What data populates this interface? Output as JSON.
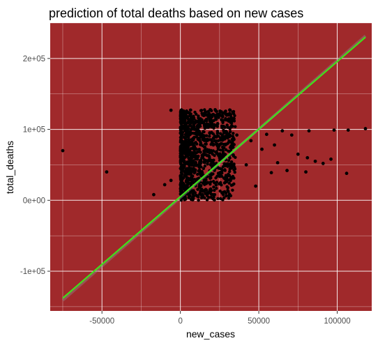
{
  "chart_data": {
    "type": "scatter",
    "title": "prediction of total deaths based on new cases",
    "xlabel": "new_cases",
    "ylabel": "total_deaths",
    "xlim": [
      -83000,
      122000
    ],
    "ylim": [
      -156000,
      250000
    ],
    "x_ticks": [
      -50000,
      0,
      50000,
      100000
    ],
    "x_tick_labels": [
      "-50000",
      "0",
      "50000",
      "100000"
    ],
    "y_ticks": [
      -100000,
      0,
      100000,
      200000
    ],
    "y_tick_labels": [
      "-1e+05",
      "0e+00",
      "1e+05",
      "2e+05"
    ],
    "grid": true,
    "panel_color": "#a0292b",
    "point_color": "#000000",
    "line_color": "#3fe21a",
    "fit_line": {
      "x": [
        -75000,
        118000
      ],
      "y": [
        -138000,
        230000
      ]
    },
    "points": [
      {
        "x": -75000,
        "y": 70000
      },
      {
        "x": -47000,
        "y": 40000
      },
      {
        "x": -17000,
        "y": 8000
      },
      {
        "x": -10000,
        "y": 22000
      },
      {
        "x": -6000,
        "y": 28000
      },
      {
        "x": -6000,
        "y": 127000
      },
      {
        "x": 3000,
        "y": 98000
      },
      {
        "x": 12000,
        "y": 85000
      },
      {
        "x": 20000,
        "y": 110000
      },
      {
        "x": 25000,
        "y": 60000
      },
      {
        "x": 32000,
        "y": 30000
      },
      {
        "x": 36000,
        "y": 92000
      },
      {
        "x": 42000,
        "y": 50000
      },
      {
        "x": 45000,
        "y": 84000
      },
      {
        "x": 48000,
        "y": 20000
      },
      {
        "x": 52000,
        "y": 72000
      },
      {
        "x": 55000,
        "y": 93000
      },
      {
        "x": 58000,
        "y": 39000
      },
      {
        "x": 60000,
        "y": 78000
      },
      {
        "x": 62000,
        "y": 53000
      },
      {
        "x": 65000,
        "y": 98000
      },
      {
        "x": 68000,
        "y": 42000
      },
      {
        "x": 71000,
        "y": 92000
      },
      {
        "x": 75000,
        "y": 65000
      },
      {
        "x": 80000,
        "y": 40000
      },
      {
        "x": 81000,
        "y": 60000
      },
      {
        "x": 82000,
        "y": 98000
      },
      {
        "x": 86000,
        "y": 55000
      },
      {
        "x": 91000,
        "y": 52000
      },
      {
        "x": 96000,
        "y": 58000
      },
      {
        "x": 98000,
        "y": 99000
      },
      {
        "x": 106000,
        "y": 38000
      },
      {
        "x": 107000,
        "y": 99000
      },
      {
        "x": 118000,
        "y": 101000
      }
    ],
    "dense_region": {
      "x_range": [
        0,
        35000
      ],
      "y_range": [
        0,
        128000
      ],
      "count": 1200
    }
  }
}
